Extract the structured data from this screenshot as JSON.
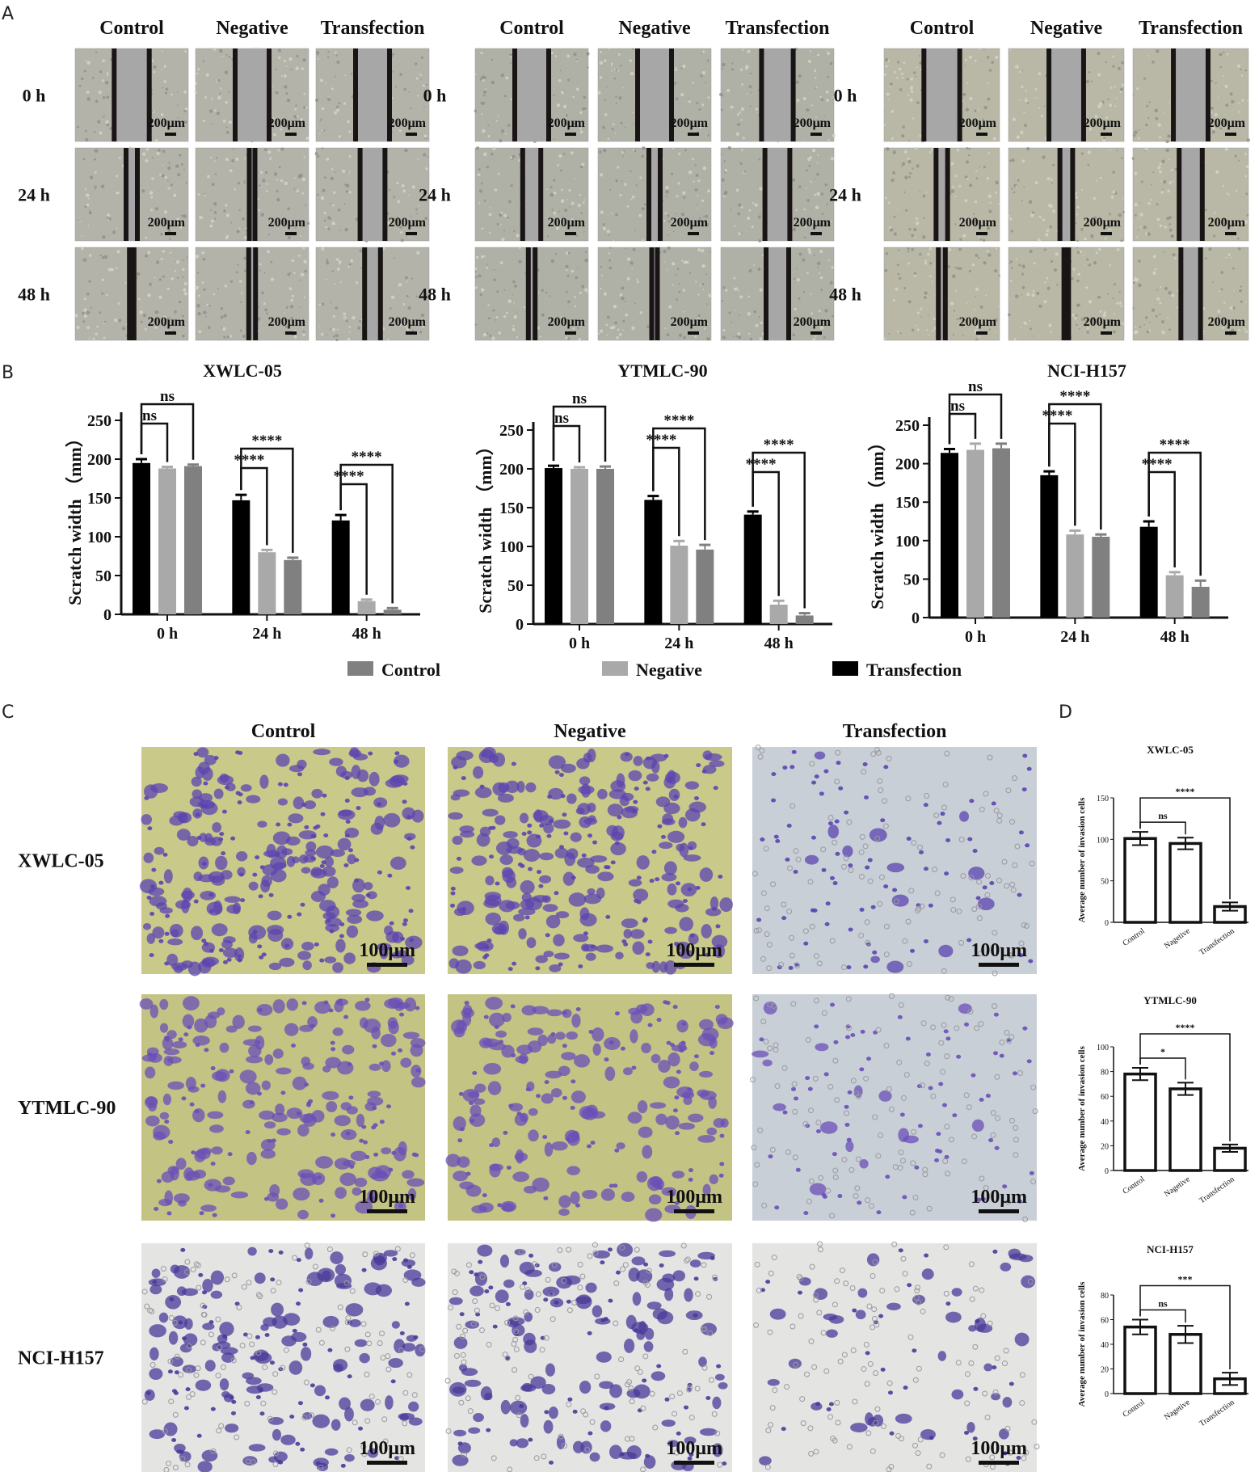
{
  "panel_labels": [
    "A",
    "B",
    "C",
    "D"
  ],
  "scratch_photos": {
    "blocks": [
      {
        "columns": [
          "Control",
          "Negative",
          "Transfection"
        ],
        "rows": [
          "0 h",
          "24 h",
          "48 h"
        ],
        "gap_level": [
          [
            0.31,
            0.3,
            0.3
          ],
          [
            0.1,
            0.05,
            0.22
          ],
          [
            0.04,
            0.06,
            0.14
          ]
        ],
        "background": "#b3b3aa"
      },
      {
        "columns": [
          "Control",
          "Negative",
          "Transfection"
        ],
        "rows": [
          "0 h",
          "24 h",
          "48 h"
        ],
        "gap_level": [
          [
            0.3,
            0.3,
            0.28
          ],
          [
            0.16,
            0.1,
            0.22
          ],
          [
            0.06,
            0.05,
            0.2
          ]
        ],
        "background": "#b0b1a6"
      },
      {
        "columns": [
          "Control",
          "Negative",
          "Transfection"
        ],
        "rows": [
          "0 h",
          "24 h",
          "48 h"
        ],
        "gap_level": [
          [
            0.31,
            0.3,
            0.3
          ],
          [
            0.1,
            0.11,
            0.2
          ],
          [
            0.06,
            0.04,
            0.17
          ]
        ],
        "background": "#b9b8a6"
      }
    ],
    "scale_label": "200μm"
  },
  "legend": [
    {
      "label": "Control",
      "color": "#808080"
    },
    {
      "label": "Negative",
      "color": "#a9a9a9"
    },
    {
      "label": "Transfection",
      "color": "#000000"
    }
  ],
  "chart_data": [
    {
      "type": "bar",
      "title": "XWLC-05",
      "ylabel": "Scratch width （mm）",
      "ylim": [
        0,
        250
      ],
      "yticks": [
        0,
        50,
        100,
        150,
        200,
        250
      ],
      "categories": [
        "0 h",
        "24 h",
        "48 h"
      ],
      "series": [
        {
          "name": "Transfection",
          "values": [
            195,
            147,
            121
          ],
          "errors": [
            5,
            7,
            7
          ]
        },
        {
          "name": "Negative",
          "values": [
            188,
            80,
            17
          ],
          "errors": [
            2,
            3,
            2
          ]
        },
        {
          "name": "Control",
          "values": [
            191,
            70,
            6
          ],
          "errors": [
            2,
            3,
            2
          ]
        }
      ],
      "significance": [
        {
          "category": 0,
          "pair": [
            0,
            1
          ],
          "label": "ns"
        },
        {
          "category": 0,
          "pair": [
            0,
            2
          ],
          "label": "ns"
        },
        {
          "category": 1,
          "pair": [
            0,
            1
          ],
          "label": "****"
        },
        {
          "category": 1,
          "pair": [
            0,
            2
          ],
          "label": "****"
        },
        {
          "category": 2,
          "pair": [
            0,
            1
          ],
          "label": "****"
        },
        {
          "category": 2,
          "pair": [
            0,
            2
          ],
          "label": "****"
        }
      ]
    },
    {
      "type": "bar",
      "title": "YTMLC-90",
      "ylabel": "Scratch width （mm）",
      "ylim": [
        0,
        250
      ],
      "yticks": [
        0,
        50,
        100,
        150,
        200,
        250
      ],
      "categories": [
        "0 h",
        "24 h",
        "48 h"
      ],
      "series": [
        {
          "name": "Transfection",
          "values": [
            201,
            160,
            141
          ],
          "errors": [
            3,
            5,
            4
          ]
        },
        {
          "name": "Negative",
          "values": [
            200,
            101,
            25
          ],
          "errors": [
            2,
            6,
            5
          ]
        },
        {
          "name": "Control",
          "values": [
            200,
            96,
            11
          ],
          "errors": [
            3,
            6,
            3
          ]
        }
      ],
      "significance": [
        {
          "category": 0,
          "pair": [
            0,
            1
          ],
          "label": "ns"
        },
        {
          "category": 0,
          "pair": [
            0,
            2
          ],
          "label": "ns"
        },
        {
          "category": 1,
          "pair": [
            0,
            1
          ],
          "label": "****"
        },
        {
          "category": 1,
          "pair": [
            0,
            2
          ],
          "label": "****"
        },
        {
          "category": 2,
          "pair": [
            0,
            1
          ],
          "label": "****"
        },
        {
          "category": 2,
          "pair": [
            0,
            2
          ],
          "label": "****"
        }
      ]
    },
    {
      "type": "bar",
      "title": "NCI-H157",
      "ylabel": "Scratch width （mm）",
      "ylim": [
        0,
        250
      ],
      "yticks": [
        0,
        50,
        100,
        150,
        200,
        250
      ],
      "categories": [
        "0 h",
        "24 h",
        "48 h"
      ],
      "series": [
        {
          "name": "Transfection",
          "values": [
            214,
            185,
            118
          ],
          "errors": [
            5,
            5,
            7
          ]
        },
        {
          "name": "Negative",
          "values": [
            218,
            108,
            55
          ],
          "errors": [
            8,
            5,
            4
          ]
        },
        {
          "name": "Control",
          "values": [
            220,
            105,
            40
          ],
          "errors": [
            6,
            3,
            8
          ]
        }
      ],
      "significance": [
        {
          "category": 0,
          "pair": [
            0,
            1
          ],
          "label": "ns"
        },
        {
          "category": 0,
          "pair": [
            0,
            2
          ],
          "label": "ns"
        },
        {
          "category": 1,
          "pair": [
            0,
            1
          ],
          "label": "****"
        },
        {
          "category": 1,
          "pair": [
            0,
            2
          ],
          "label": "****"
        },
        {
          "category": 2,
          "pair": [
            0,
            1
          ],
          "label": "****"
        },
        {
          "category": 2,
          "pair": [
            0,
            2
          ],
          "label": "****"
        }
      ]
    },
    {
      "type": "bar",
      "title": "XWLC-05",
      "ylabel": "Average number of invasion cells",
      "ylim": [
        0,
        150
      ],
      "yticks": [
        0,
        50,
        100,
        150
      ],
      "categories": [
        "Control",
        "Nagetive",
        "Transfection"
      ],
      "values": [
        101,
        95,
        19
      ],
      "errors": [
        8,
        7,
        5
      ],
      "significance": [
        {
          "pair": [
            0,
            1
          ],
          "label": "ns"
        },
        {
          "pair": [
            0,
            2
          ],
          "label": "****"
        }
      ]
    },
    {
      "type": "bar",
      "title": "YTMLC-90",
      "ylabel": "Average number of invasion cells",
      "ylim": [
        0,
        100
      ],
      "yticks": [
        0,
        20,
        40,
        60,
        80,
        100
      ],
      "categories": [
        "Control",
        "Nagetive",
        "Transfection"
      ],
      "values": [
        78,
        66,
        18
      ],
      "errors": [
        5,
        5,
        3
      ],
      "significance": [
        {
          "pair": [
            0,
            1
          ],
          "label": "*"
        },
        {
          "pair": [
            0,
            2
          ],
          "label": "****"
        }
      ]
    },
    {
      "type": "bar",
      "title": "NCI-H157",
      "ylabel": "Average number of invasion cells",
      "ylim": [
        0,
        80
      ],
      "yticks": [
        0,
        20,
        40,
        60,
        80
      ],
      "categories": [
        "Control",
        "Nagetive",
        "Transfection"
      ],
      "values": [
        54,
        48,
        12
      ],
      "errors": [
        6,
        7,
        5
      ],
      "significance": [
        {
          "pair": [
            0,
            1
          ],
          "label": "ns"
        },
        {
          "pair": [
            0,
            2
          ],
          "label": "***"
        }
      ]
    }
  ],
  "invasion_photos": {
    "columns": [
      "Control",
      "Negative",
      "Transfection"
    ],
    "rows": [
      "XWLC-05",
      "YTMLC-90",
      "NCI-H157"
    ],
    "cell_density": [
      [
        1.0,
        0.95,
        0.2
      ],
      [
        0.78,
        0.66,
        0.18
      ],
      [
        0.54,
        0.48,
        0.12
      ]
    ],
    "backgrounds": [
      "#c9c98a",
      "#c3c384",
      "#e4e4e2"
    ],
    "scale_label": "100μm"
  }
}
